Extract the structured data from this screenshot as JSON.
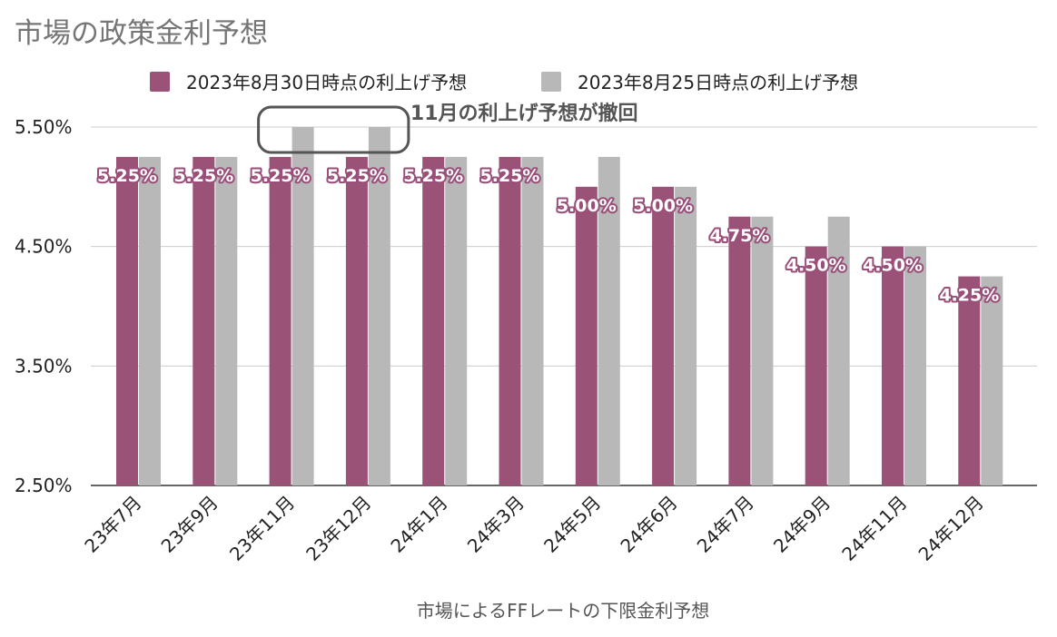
{
  "chart_data": {
    "type": "bar",
    "title": "市場の政策金利予想",
    "xlabel": "市場によるFFレートの下限金利予想",
    "ylabel": "",
    "ylim": [
      2.5,
      5.5
    ],
    "yticks": [
      2.5,
      3.5,
      4.5,
      5.5
    ],
    "ytick_labels": [
      "2.50%",
      "3.50%",
      "4.50%",
      "5.50%"
    ],
    "grid": true,
    "legend_position": "top-center",
    "categories": [
      "23年7月",
      "23年9月",
      "23年11月",
      "23年12月",
      "24年1月",
      "24年3月",
      "24年5月",
      "24年6月",
      "24年7月",
      "24年9月",
      "24年11月",
      "24年12月"
    ],
    "series": [
      {
        "name": "2023年8月30日時点の利上げ予想",
        "color": "#9a5277",
        "values": [
          5.25,
          5.25,
          5.25,
          5.25,
          5.25,
          5.25,
          5.0,
          5.0,
          4.75,
          4.5,
          4.5,
          4.25
        ],
        "data_labels": [
          "5.25%",
          "5.25%",
          "5.25%",
          "5.25%",
          "5.25%",
          "5.25%",
          "5.00%",
          "5.00%",
          "4.75%",
          "4.50%",
          "4.50%",
          "4.25%"
        ]
      },
      {
        "name": "2023年8月25日時点の利上げ予想",
        "color": "#b8b8b8",
        "values": [
          5.25,
          5.25,
          5.5,
          5.5,
          5.25,
          5.25,
          5.25,
          5.0,
          4.75,
          4.75,
          4.5,
          4.25
        ]
      }
    ],
    "annotation": {
      "text": "11月の利上げ予想が撤回",
      "categories": [
        "23年11月",
        "23年12月"
      ]
    }
  },
  "colors": {
    "grid": "#cccccc",
    "axis": "#333333",
    "annotation_box": "#555555"
  }
}
